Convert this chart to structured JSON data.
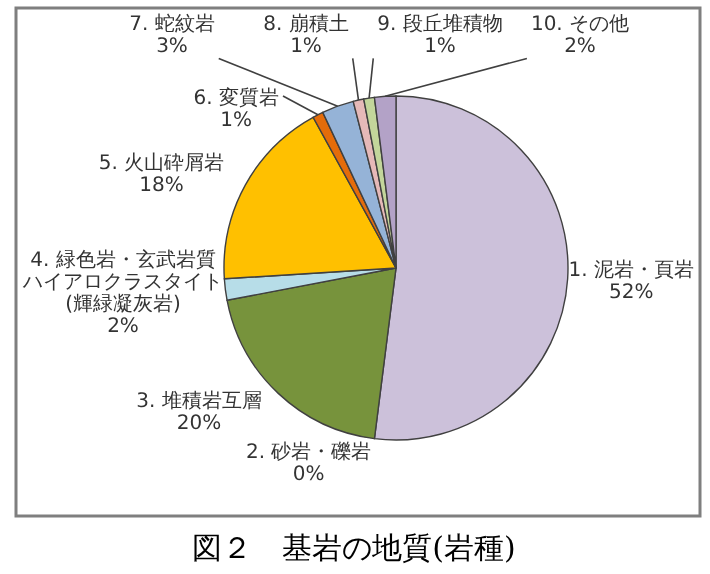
{
  "chart_data": {
    "type": "pie",
    "title": "図２　基岩の地質(岩種)",
    "categories": [
      "1. 泥岩・頁岩",
      "2. 砂岩・礫岩",
      "3. 堆積岩互層",
      "4. 緑色岩・玄武岩質ハイアロクラスタイト(輝緑凝灰岩)",
      "5. 火山砕屑岩",
      "6. 変質岩",
      "7. 蛇紋岩",
      "8. 崩積土",
      "9. 段丘堆積物",
      "10. その他"
    ],
    "values": [
      52,
      0,
      20,
      2,
      18,
      1,
      3,
      1,
      1,
      2
    ],
    "value_labels": [
      "52%",
      "0%",
      "20%",
      "2%",
      "18%",
      "1%",
      "3%",
      "1%",
      "1%",
      "2%"
    ],
    "colors": [
      "#ccc1da",
      "#d7e4bd",
      "#77933c",
      "#b7dde8",
      "#ffc000",
      "#e46c0a",
      "#95b3d7",
      "#e6b9b8",
      "#c3d69b",
      "#b3a2c7"
    ],
    "legend": false
  }
}
